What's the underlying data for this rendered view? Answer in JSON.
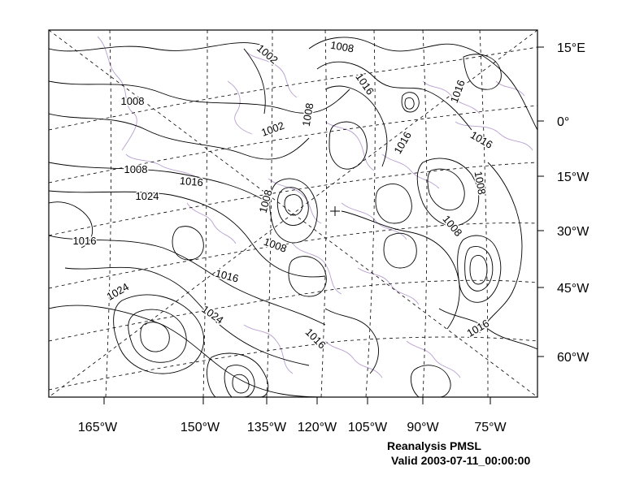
{
  "map": {
    "colors": {
      "coastline": "#b8a0d0",
      "contour": "#000000",
      "graticule": "#000000"
    },
    "right_axis_labels": [
      "15°E",
      "0°",
      "15°W",
      "30°W",
      "45°W",
      "60°W"
    ],
    "bottom_axis_labels": [
      "165°W",
      "150°W",
      "135°W",
      "120°W",
      "105°W",
      "90°W",
      "75°W"
    ],
    "contour_labels": [
      "1008",
      "1002",
      "1008",
      "1016",
      "1016",
      "1008",
      "1002",
      "1008",
      "1016",
      "1016",
      "1008",
      "1016",
      "1024",
      "1008",
      "1008",
      "1008",
      "1016",
      "1016",
      "1024",
      "1024",
      "1016",
      "1016"
    ]
  },
  "caption": {
    "line1": "Reanalysis PMSL",
    "line2": "Valid 2003-07-11_00:00:00"
  }
}
